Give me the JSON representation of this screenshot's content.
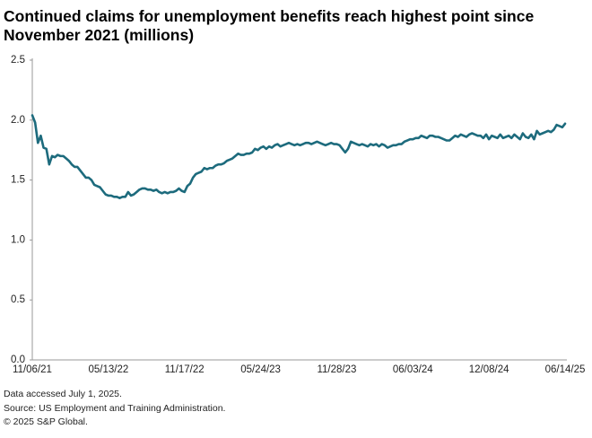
{
  "chart_data": {
    "type": "line",
    "title": "Continued claims for unemployment benefits reach highest point since November 2021 (millions)",
    "categories": [
      "11/06/21",
      null,
      null,
      null,
      null,
      null,
      null,
      null,
      null,
      null,
      null,
      null,
      null,
      null,
      null,
      null,
      null,
      null,
      null,
      null,
      null,
      null,
      null,
      null,
      null,
      null,
      null,
      "05/13/22",
      null,
      null,
      null,
      null,
      null,
      null,
      null,
      null,
      null,
      null,
      null,
      null,
      null,
      null,
      null,
      null,
      null,
      null,
      null,
      null,
      null,
      null,
      null,
      null,
      null,
      null,
      "11/17/22",
      null,
      null,
      null,
      null,
      null,
      null,
      null,
      null,
      null,
      null,
      null,
      null,
      null,
      null,
      null,
      null,
      null,
      null,
      null,
      null,
      null,
      null,
      null,
      null,
      null,
      null,
      "05/24/23",
      null,
      null,
      null,
      null,
      null,
      null,
      null,
      null,
      null,
      null,
      null,
      null,
      null,
      null,
      null,
      null,
      null,
      null,
      null,
      null,
      null,
      null,
      null,
      null,
      null,
      null,
      "11/28/23",
      null,
      null,
      null,
      null,
      null,
      null,
      null,
      null,
      null,
      null,
      null,
      null,
      null,
      null,
      null,
      null,
      null,
      null,
      null,
      null,
      null,
      null,
      null,
      null,
      null,
      null,
      "06/03/24",
      null,
      null,
      null,
      null,
      null,
      null,
      null,
      null,
      null,
      null,
      null,
      null,
      null,
      null,
      null,
      null,
      null,
      null,
      null,
      null,
      null,
      null,
      null,
      null,
      null,
      null,
      "12/08/24",
      null,
      null,
      null,
      null,
      null,
      null,
      null,
      null,
      null,
      null,
      null,
      null,
      null,
      null,
      null,
      null,
      null,
      null,
      null,
      null,
      null,
      null,
      null,
      null,
      null,
      null,
      "06/14/25"
    ],
    "values": [
      2.04,
      1.98,
      1.81,
      1.87,
      1.77,
      1.76,
      1.63,
      1.7,
      1.69,
      1.71,
      1.7,
      1.7,
      1.68,
      1.66,
      1.63,
      1.61,
      1.61,
      1.58,
      1.55,
      1.52,
      1.52,
      1.5,
      1.46,
      1.45,
      1.44,
      1.41,
      1.38,
      1.37,
      1.37,
      1.36,
      1.36,
      1.35,
      1.36,
      1.36,
      1.4,
      1.37,
      1.38,
      1.4,
      1.42,
      1.43,
      1.43,
      1.42,
      1.42,
      1.41,
      1.42,
      1.4,
      1.39,
      1.4,
      1.39,
      1.4,
      1.4,
      1.41,
      1.43,
      1.41,
      1.4,
      1.45,
      1.47,
      1.52,
      1.55,
      1.56,
      1.57,
      1.6,
      1.59,
      1.6,
      1.6,
      1.62,
      1.63,
      1.63,
      1.64,
      1.66,
      1.67,
      1.68,
      1.7,
      1.72,
      1.71,
      1.71,
      1.72,
      1.72,
      1.73,
      1.76,
      1.75,
      1.77,
      1.78,
      1.76,
      1.78,
      1.77,
      1.79,
      1.8,
      1.78,
      1.79,
      1.8,
      1.81,
      1.8,
      1.79,
      1.8,
      1.79,
      1.8,
      1.81,
      1.81,
      1.8,
      1.81,
      1.82,
      1.81,
      1.8,
      1.79,
      1.8,
      1.81,
      1.8,
      1.8,
      1.79,
      1.76,
      1.73,
      1.76,
      1.82,
      1.81,
      1.8,
      1.79,
      1.8,
      1.79,
      1.78,
      1.8,
      1.79,
      1.8,
      1.78,
      1.8,
      1.79,
      1.77,
      1.78,
      1.79,
      1.79,
      1.8,
      1.8,
      1.82,
      1.83,
      1.84,
      1.84,
      1.85,
      1.85,
      1.87,
      1.86,
      1.85,
      1.87,
      1.87,
      1.86,
      1.86,
      1.85,
      1.84,
      1.83,
      1.83,
      1.85,
      1.87,
      1.86,
      1.88,
      1.87,
      1.86,
      1.88,
      1.89,
      1.88,
      1.87,
      1.87,
      1.85,
      1.88,
      1.84,
      1.87,
      1.86,
      1.85,
      1.88,
      1.85,
      1.86,
      1.87,
      1.85,
      1.88,
      1.86,
      1.84,
      1.89,
      1.86,
      1.85,
      1.88,
      1.84,
      1.91,
      1.88,
      1.89,
      1.9,
      1.91,
      1.9,
      1.92,
      1.96,
      1.95,
      1.94,
      1.97
    ],
    "color": "#1d6b7d",
    "ylim": [
      0,
      2.5
    ],
    "yticks": [
      {
        "value": 0,
        "label": "0.0"
      },
      0.5,
      {
        "value": 1,
        "label": "1.0"
      },
      1.5,
      {
        "value": 2,
        "label": "2.0"
      },
      2.5
    ],
    "grid": false,
    "notes": [
      "Data accessed July 1, 2025.",
      "Source: US Employment and Training Administration.",
      "© 2025 S&P Global."
    ]
  }
}
